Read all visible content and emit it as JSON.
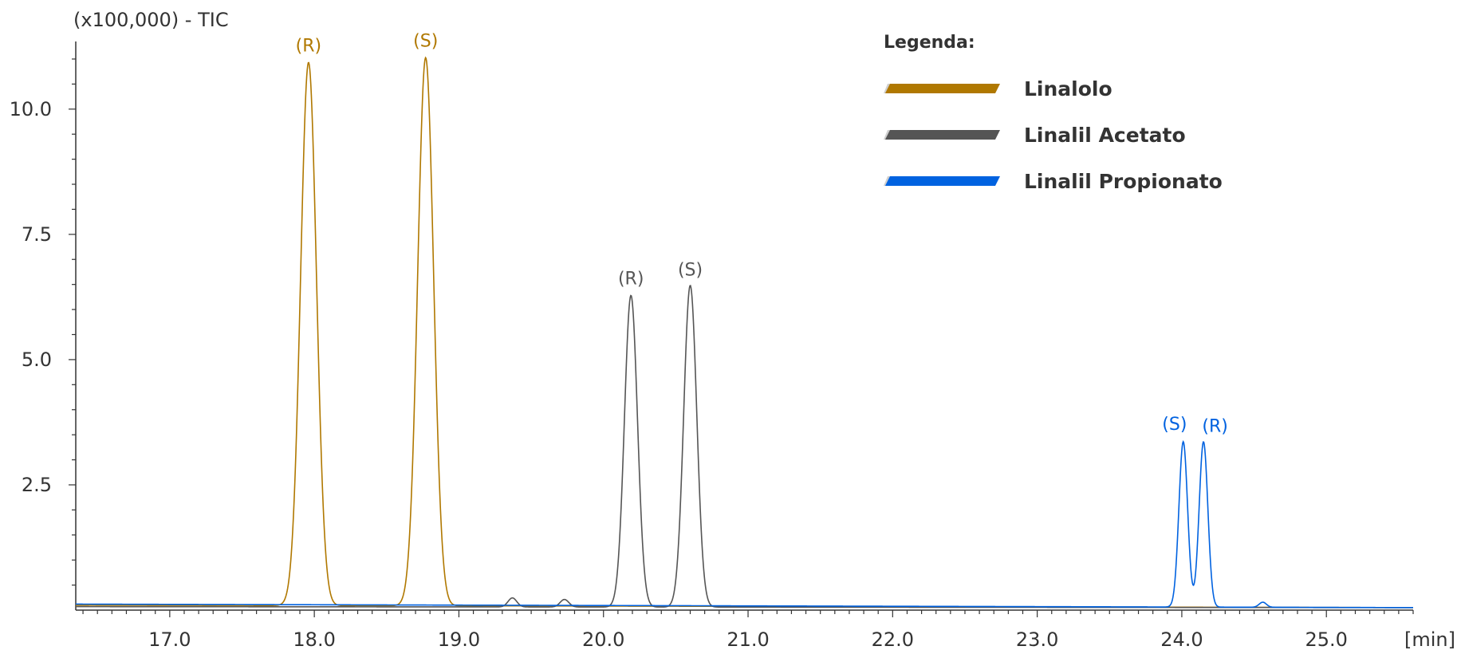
{
  "chart_data": {
    "type": "line",
    "y_unit_label": "(x100,000) - TIC",
    "x_unit_label": "[min]",
    "xlim": [
      16.35,
      25.6
    ],
    "ylim": [
      0,
      11.35
    ],
    "x_ticks": [
      17.0,
      18.0,
      19.0,
      20.0,
      21.0,
      22.0,
      23.0,
      24.0,
      25.0
    ],
    "x_tick_labels": [
      "17.0",
      "18.0",
      "19.0",
      "20.0",
      "21.0",
      "22.0",
      "23.0",
      "24.0",
      "25.0"
    ],
    "y_ticks": [
      2.5,
      5.0,
      7.5,
      10.0
    ],
    "y_tick_labels": [
      "2.5",
      "5.0",
      "7.5",
      "10.0"
    ],
    "legend": {
      "title": "Legenda:",
      "placement": "top-right",
      "entries": [
        {
          "label": "Linalolo",
          "color": "#b07800"
        },
        {
          "label": "Linalil Acetato",
          "color": "#555555"
        },
        {
          "label": "Linalil Propionato",
          "color": "#0062e0"
        }
      ]
    },
    "series": [
      {
        "color": "#b07800",
        "baseline": [
          0.1,
          0.05
        ],
        "peaks": [
          {
            "rt": 17.96,
            "height": 10.84,
            "width": 0.055
          },
          {
            "rt": 18.77,
            "height": 10.94,
            "width": 0.055
          }
        ],
        "labels": [
          {
            "text": "(R)",
            "rt": 17.96,
            "y": 11.15
          },
          {
            "text": "(S)",
            "rt": 18.77,
            "y": 11.25
          }
        ]
      },
      {
        "color": "#555555",
        "baseline": [
          0.07,
          0.05
        ],
        "peaks": [
          {
            "rt": 19.37,
            "height": 0.18,
            "width": 0.03
          },
          {
            "rt": 19.73,
            "height": 0.15,
            "width": 0.03
          },
          {
            "rt": 20.19,
            "height": 6.22,
            "width": 0.045
          },
          {
            "rt": 20.6,
            "height": 6.42,
            "width": 0.045
          }
        ],
        "labels": [
          {
            "text": "(R)",
            "rt": 20.19,
            "y": 6.5
          },
          {
            "text": "(S)",
            "rt": 20.6,
            "y": 6.68
          }
        ]
      },
      {
        "color": "#0062e0",
        "baseline": [
          0.12,
          0.05
        ],
        "peaks": [
          {
            "rt": 24.01,
            "height": 3.3,
            "width": 0.03
          },
          {
            "rt": 24.15,
            "height": 3.3,
            "width": 0.03
          },
          {
            "rt": 24.56,
            "height": 0.1,
            "width": 0.025
          }
        ],
        "labels": [
          {
            "text": "(S)",
            "rt": 23.95,
            "y": 3.6
          },
          {
            "text": "(R)",
            "rt": 24.23,
            "y": 3.56
          }
        ]
      }
    ]
  }
}
